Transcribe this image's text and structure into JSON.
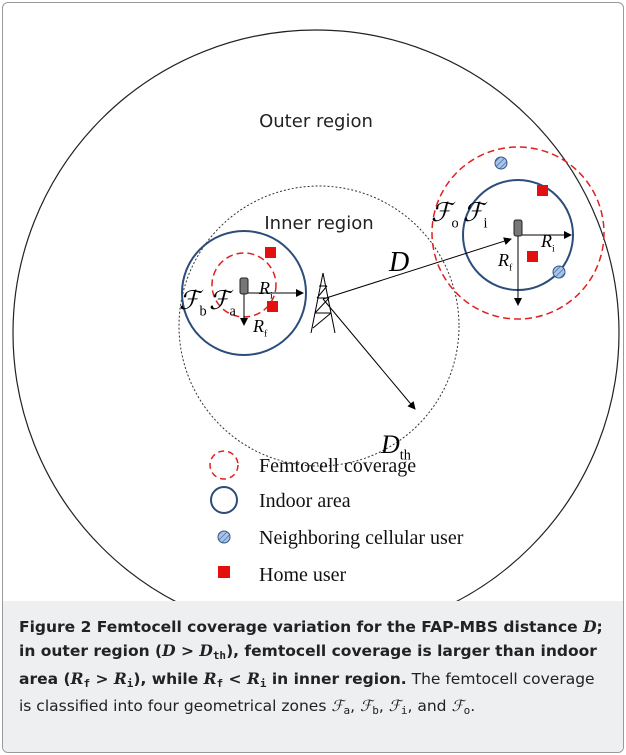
{
  "diagram": {
    "regions": [
      "Outer region",
      "Inner region"
    ],
    "symbols": [
      {
        "main": "ℱ",
        "sub": "b"
      },
      {
        "main": "ℱ",
        "sub": "a"
      },
      {
        "main": "R",
        "sub": "i"
      },
      {
        "main": "R",
        "sub": "f"
      },
      {
        "main": "ℱ",
        "sub": "o"
      },
      {
        "main": "ℱ",
        "sub": "i"
      },
      {
        "main": "R",
        "sub": "i"
      },
      {
        "main": "R",
        "sub": "f"
      },
      {
        "main": "D",
        "sub": null
      },
      {
        "main": "D",
        "sub": "th"
      }
    ],
    "legend": [
      "Femtocell coverage",
      "Indoor area",
      "Neighboring cellular user",
      "Home user"
    ]
  },
  "caption": {
    "runs": [
      "Figure 2",
      " Femtocell coverage variation for the FAP-MBS distance ",
      "D",
      "; in outer region (",
      "D",
      " > ",
      "D",
      "th",
      "), femtocell coverage is larger than indoor area (",
      "R",
      "f",
      " > ",
      "R",
      "i",
      "), while ",
      "R",
      "f",
      " < ",
      "R",
      "i",
      " in inner region.",
      " The femtocell coverage is classified into four geometrical zones ",
      "ℱ",
      "a",
      ", ",
      "ℱ",
      "b",
      ", ",
      "ℱ",
      "i",
      ", and ",
      "ℱ",
      "o",
      "."
    ]
  }
}
